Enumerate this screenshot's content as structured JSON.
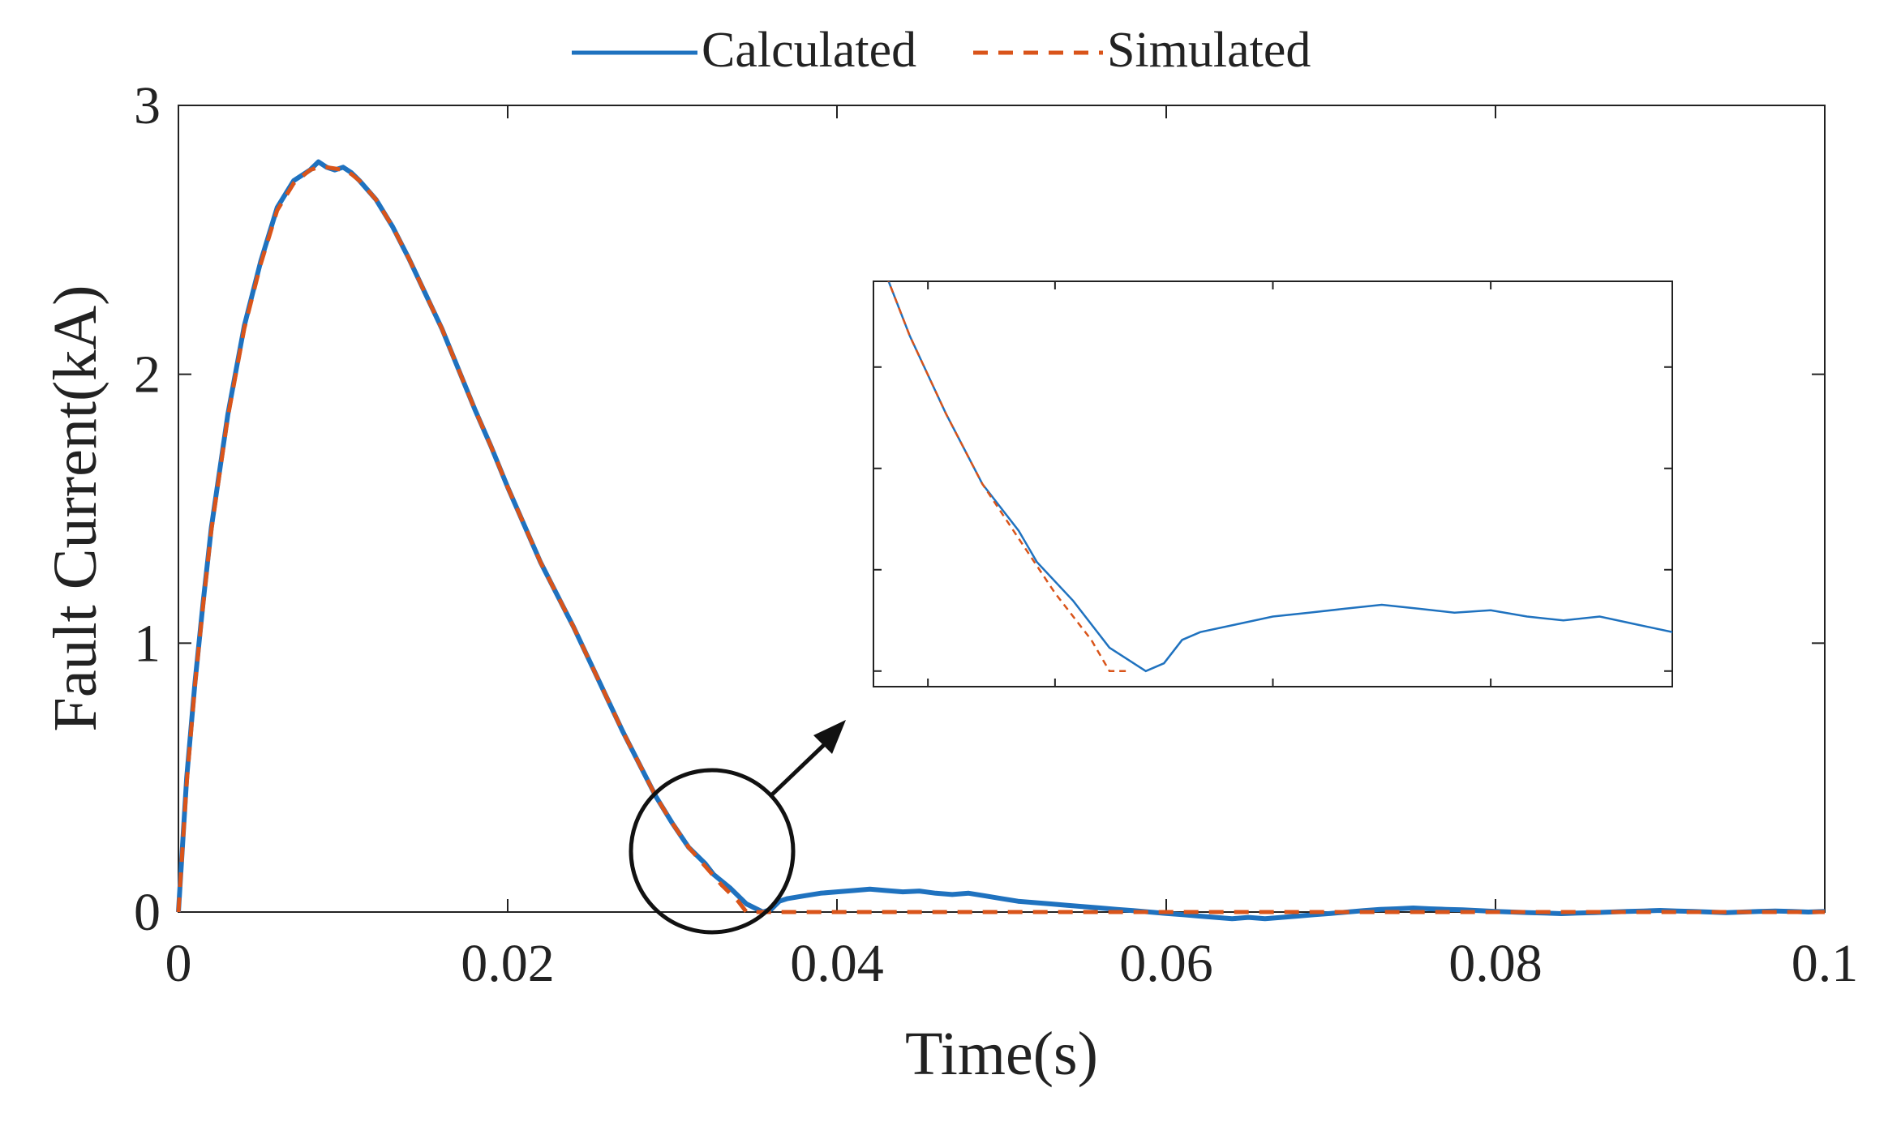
{
  "colors": {
    "calculated": "#1f72bf",
    "simulated": "#d9541a",
    "axis": "#222222"
  },
  "chart_data": {
    "type": "line",
    "title": "",
    "xlabel": "Time(s)",
    "ylabel": "Fault Current(kA)",
    "xlim": [
      0,
      0.1
    ],
    "ylim": [
      0,
      3
    ],
    "xticks": [
      0,
      0.02,
      0.04,
      0.06,
      0.08,
      0.1
    ],
    "xtick_labels": [
      "0",
      "0.02",
      "0.04",
      "0.06",
      "0.08",
      "0.1"
    ],
    "yticks": [
      0,
      1,
      2,
      3
    ],
    "ytick_labels": [
      "0",
      "1",
      "2",
      "3"
    ],
    "legend": {
      "position": "top-center",
      "entries": [
        "Calculated",
        "Simulated"
      ]
    },
    "series": [
      {
        "name": "Calculated",
        "style": "solid",
        "points": [
          [
            0,
            0
          ],
          [
            0.0005,
            0.5
          ],
          [
            0.001,
            0.85
          ],
          [
            0.0015,
            1.15
          ],
          [
            0.002,
            1.43
          ],
          [
            0.003,
            1.85
          ],
          [
            0.004,
            2.18
          ],
          [
            0.005,
            2.42
          ],
          [
            0.006,
            2.62
          ],
          [
            0.007,
            2.72
          ],
          [
            0.008,
            2.76
          ],
          [
            0.0085,
            2.79
          ],
          [
            0.009,
            2.77
          ],
          [
            0.0095,
            2.76
          ],
          [
            0.01,
            2.77
          ],
          [
            0.0105,
            2.75
          ],
          [
            0.011,
            2.72
          ],
          [
            0.012,
            2.65
          ],
          [
            0.013,
            2.55
          ],
          [
            0.014,
            2.43
          ],
          [
            0.015,
            2.3
          ],
          [
            0.016,
            2.17
          ],
          [
            0.017,
            2.02
          ],
          [
            0.018,
            1.87
          ],
          [
            0.019,
            1.73
          ],
          [
            0.02,
            1.58
          ],
          [
            0.021,
            1.44
          ],
          [
            0.022,
            1.3
          ],
          [
            0.023,
            1.18
          ],
          [
            0.024,
            1.06
          ],
          [
            0.025,
            0.93
          ],
          [
            0.026,
            0.8
          ],
          [
            0.027,
            0.67
          ],
          [
            0.028,
            0.55
          ],
          [
            0.029,
            0.43
          ],
          [
            0.03,
            0.33
          ],
          [
            0.031,
            0.24
          ],
          [
            0.032,
            0.18
          ],
          [
            0.0325,
            0.14
          ],
          [
            0.0335,
            0.09
          ],
          [
            0.0345,
            0.03
          ],
          [
            0.0355,
            0.0
          ],
          [
            0.036,
            0.01
          ],
          [
            0.0365,
            0.04
          ],
          [
            0.037,
            0.05
          ],
          [
            0.038,
            0.06
          ],
          [
            0.039,
            0.07
          ],
          [
            0.04,
            0.075
          ],
          [
            0.041,
            0.08
          ],
          [
            0.042,
            0.085
          ],
          [
            0.043,
            0.08
          ],
          [
            0.044,
            0.075
          ],
          [
            0.045,
            0.078
          ],
          [
            0.046,
            0.07
          ],
          [
            0.047,
            0.065
          ],
          [
            0.048,
            0.07
          ],
          [
            0.049,
            0.06
          ],
          [
            0.05,
            0.05
          ],
          [
            0.051,
            0.04
          ],
          [
            0.052,
            0.035
          ],
          [
            0.053,
            0.03
          ],
          [
            0.054,
            0.025
          ],
          [
            0.055,
            0.02
          ],
          [
            0.056,
            0.015
          ],
          [
            0.057,
            0.01
          ],
          [
            0.058,
            0.005
          ],
          [
            0.059,
            0.0
          ],
          [
            0.06,
            -0.005
          ],
          [
            0.061,
            -0.01
          ],
          [
            0.062,
            -0.015
          ],
          [
            0.063,
            -0.02
          ],
          [
            0.064,
            -0.025
          ],
          [
            0.065,
            -0.02
          ],
          [
            0.066,
            -0.025
          ],
          [
            0.067,
            -0.02
          ],
          [
            0.068,
            -0.015
          ],
          [
            0.069,
            -0.01
          ],
          [
            0.07,
            -0.005
          ],
          [
            0.071,
            0.0
          ],
          [
            0.072,
            0.005
          ],
          [
            0.073,
            0.01
          ],
          [
            0.074,
            0.012
          ],
          [
            0.075,
            0.015
          ],
          [
            0.076,
            0.012
          ],
          [
            0.077,
            0.01
          ],
          [
            0.078,
            0.008
          ],
          [
            0.079,
            0.005
          ],
          [
            0.08,
            0.002
          ],
          [
            0.081,
            0.0
          ],
          [
            0.082,
            -0.002
          ],
          [
            0.083,
            -0.004
          ],
          [
            0.084,
            -0.006
          ],
          [
            0.085,
            -0.004
          ],
          [
            0.086,
            -0.002
          ],
          [
            0.087,
            0.0
          ],
          [
            0.088,
            0.002
          ],
          [
            0.089,
            0.004
          ],
          [
            0.09,
            0.006
          ],
          [
            0.091,
            0.004
          ],
          [
            0.092,
            0.002
          ],
          [
            0.093,
            0.0
          ],
          [
            0.094,
            -0.002
          ],
          [
            0.095,
            0.0
          ],
          [
            0.096,
            0.002
          ],
          [
            0.097,
            0.004
          ],
          [
            0.098,
            0.002
          ],
          [
            0.099,
            0.0
          ],
          [
            0.1,
            0.002
          ]
        ]
      },
      {
        "name": "Simulated",
        "style": "dashed",
        "points": [
          [
            0,
            0
          ],
          [
            0.0005,
            0.48
          ],
          [
            0.001,
            0.84
          ],
          [
            0.0015,
            1.14
          ],
          [
            0.002,
            1.42
          ],
          [
            0.003,
            1.84
          ],
          [
            0.004,
            2.17
          ],
          [
            0.005,
            2.41
          ],
          [
            0.006,
            2.61
          ],
          [
            0.007,
            2.71
          ],
          [
            0.008,
            2.76
          ],
          [
            0.0085,
            2.77
          ],
          [
            0.009,
            2.77
          ],
          [
            0.0095,
            2.765
          ],
          [
            0.01,
            2.76
          ],
          [
            0.0105,
            2.745
          ],
          [
            0.011,
            2.72
          ],
          [
            0.012,
            2.65
          ],
          [
            0.013,
            2.55
          ],
          [
            0.014,
            2.43
          ],
          [
            0.015,
            2.3
          ],
          [
            0.016,
            2.17
          ],
          [
            0.017,
            2.02
          ],
          [
            0.018,
            1.87
          ],
          [
            0.019,
            1.73
          ],
          [
            0.02,
            1.58
          ],
          [
            0.021,
            1.44
          ],
          [
            0.022,
            1.3
          ],
          [
            0.023,
            1.18
          ],
          [
            0.024,
            1.06
          ],
          [
            0.025,
            0.93
          ],
          [
            0.026,
            0.8
          ],
          [
            0.027,
            0.67
          ],
          [
            0.028,
            0.55
          ],
          [
            0.029,
            0.43
          ],
          [
            0.03,
            0.33
          ],
          [
            0.031,
            0.24
          ],
          [
            0.032,
            0.17
          ],
          [
            0.033,
            0.1
          ],
          [
            0.034,
            0.04
          ],
          [
            0.0345,
            0.0
          ],
          [
            0.035,
            0.0
          ],
          [
            0.1,
            0.0
          ]
        ]
      }
    ],
    "inset": {
      "description_visible": false,
      "xlim": [
        0.028,
        0.05
      ],
      "ylim": [
        -0.02,
        0.5
      ],
      "annotation": "circle-with-arrow"
    }
  }
}
